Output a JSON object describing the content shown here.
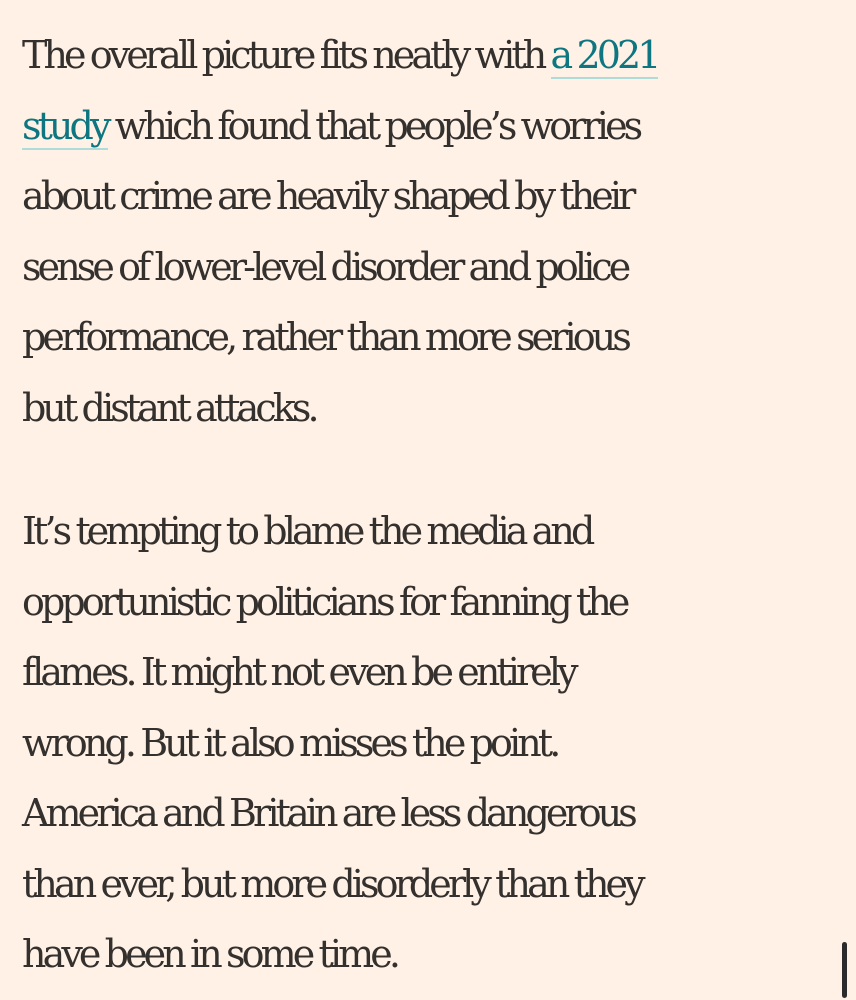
{
  "article": {
    "paragraph1": {
      "line1_text": "The overall picture fits neatly with ",
      "link_part1": "a 2021",
      "link_part2": "study",
      "line2_rest": " which found that people’s worries",
      "line3": "about crime are heavily shaped by their",
      "line4": "sense of lower-level disorder and police",
      "line5": "performance, rather than more serious",
      "line6": "but distant attacks."
    },
    "paragraph2": {
      "line1": "It’s tempting to blame the media and",
      "line2": "opportunistic politicians for fanning the",
      "line3": "flames. It might not even be entirely",
      "line4": "wrong. But it also misses the point.",
      "line5": "America and Britain are less dangerous",
      "line6": "than ever, but more disorderly than they",
      "line7": "have been in some time."
    }
  },
  "colors": {
    "background": "#fff1e5",
    "text": "#33302e",
    "link": "#0d7680",
    "link_underline": "#aedcd9",
    "scrollbar": "#2b2b2b"
  }
}
